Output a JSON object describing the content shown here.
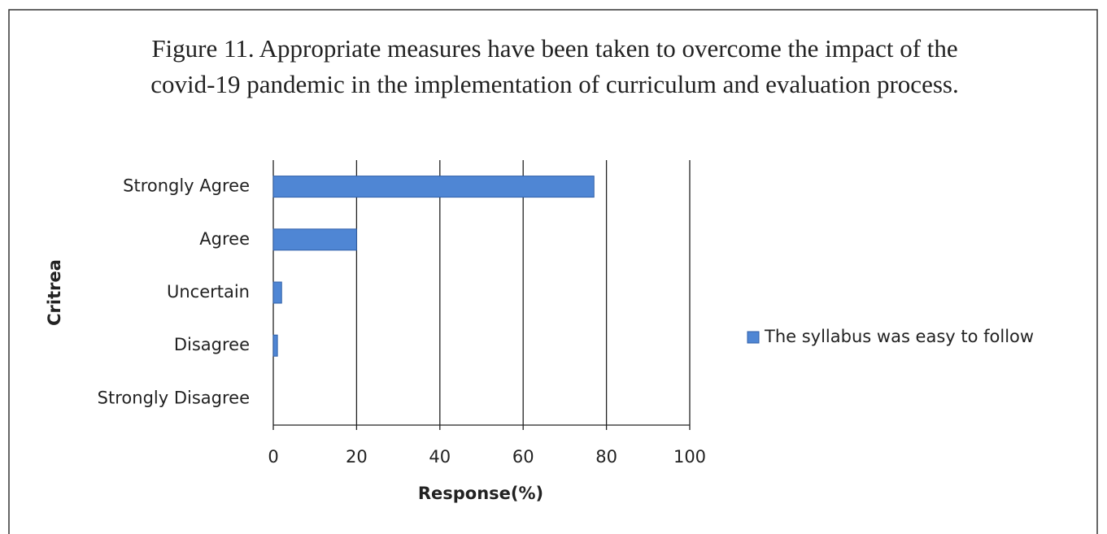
{
  "chart_data": {
    "type": "hbar",
    "title": "Figure 11. Appropriate measures have been taken to overcome the impact of the covid-19 pandemic in the implementation of curriculum and evaluation process.",
    "categories": [
      "Strongly Agree",
      "Agree",
      "Uncertain",
      "Disagree",
      "Strongly Disagree"
    ],
    "series": [
      {
        "name": "The syllabus was easy to follow",
        "color": "#4f86d4",
        "values": [
          77,
          20,
          2,
          1,
          0
        ]
      }
    ],
    "xlim": [
      0,
      100
    ],
    "xticks": [
      0,
      20,
      40,
      60,
      80,
      100
    ],
    "xlabel": "Response(%)",
    "ylabel": "Critrea",
    "grid": true,
    "legend": "right"
  }
}
